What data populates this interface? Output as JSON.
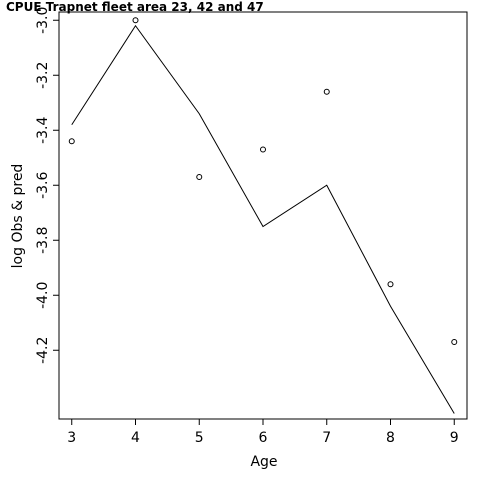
{
  "chart_data": {
    "type": "line",
    "title": "CPUE Trapnet fleet area 23, 42 and 47",
    "xlabel": "Age",
    "ylabel": "log Obs & pred",
    "xlim": [
      2.8,
      9.2
    ],
    "ylim": [
      -4.45,
      -2.97
    ],
    "x_ticks": [
      3,
      4,
      5,
      6,
      7,
      8,
      9
    ],
    "x_tick_labels": [
      "3",
      "4",
      "5",
      "6",
      "7",
      "8",
      "9"
    ],
    "y_ticks": [
      -3.0,
      -3.2,
      -3.4,
      -3.6,
      -3.8,
      -4.0,
      -4.2
    ],
    "y_tick_labels": [
      "-3.0",
      "-3.2",
      "-3.4",
      "-3.6",
      "-3.8",
      "-4.0",
      "-4.2"
    ],
    "series": [
      {
        "style": "points",
        "x": [
          3,
          4,
          5,
          6,
          7,
          8,
          9
        ],
        "values": [
          -3.44,
          -3.0,
          -3.57,
          -3.47,
          -3.26,
          -3.96,
          -4.17
        ]
      },
      {
        "style": "line",
        "x": [
          3,
          4,
          5,
          6,
          7,
          8,
          9
        ],
        "values": [
          -3.38,
          -3.02,
          -3.34,
          -3.75,
          -3.6,
          -4.04,
          -4.43
        ]
      }
    ]
  }
}
